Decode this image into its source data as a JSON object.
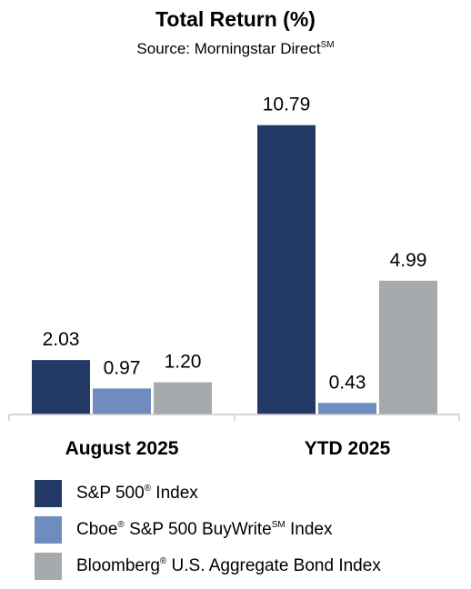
{
  "chart_data": {
    "type": "bar",
    "title": "Total Return (%)",
    "subtitle": "Source: Morningstar Direct",
    "subtitle_sup": "SM",
    "categories": [
      "August 2025",
      "YTD 2025"
    ],
    "series": [
      {
        "name": "S&P 500® Index",
        "color": "#243a66",
        "values": [
          2.03,
          10.79
        ],
        "labels": [
          "2.03",
          "10.79"
        ]
      },
      {
        "name": "Cboe® S&P 500 BuyWriteSM Index",
        "color": "#6f8cbf",
        "values": [
          0.97,
          0.43
        ],
        "labels": [
          "0.97",
          "0.43"
        ]
      },
      {
        "name": "Bloomberg® U.S. Aggregate Bond Index",
        "color": "#a7aaad",
        "values": [
          1.2,
          4.99
        ],
        "labels": [
          "1.20",
          "4.99"
        ]
      }
    ],
    "legend": {
      "placement": "bottom",
      "items": [
        {
          "before": "S&P 500",
          "sup": "®",
          "after": " Index"
        },
        {
          "before": "Cboe",
          "sup": "®",
          "after": " S&P 500 BuyWrite",
          "sup2": "SM",
          "after2": " Index"
        },
        {
          "before": "Bloomberg",
          "sup": "®",
          "after": " U.S. Aggregate Bond Index"
        }
      ]
    },
    "ylim": [
      0,
      11
    ],
    "grid": false
  }
}
